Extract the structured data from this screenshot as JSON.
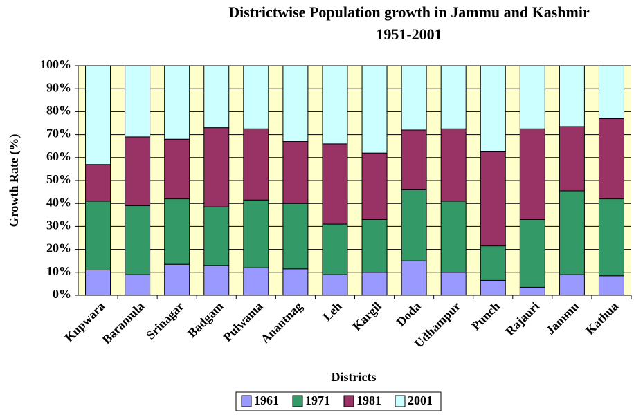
{
  "chart_data": {
    "type": "stacked_bar",
    "title": "Districtwise Population growth in Jammu and Kashmir",
    "subtitle": "1951-2001",
    "x_label": "Districts",
    "y_label": "Growth Rate (%)",
    "categories": [
      "Kupwara",
      "Baramula",
      "Srinagar",
      "Badgam",
      "Pulwama",
      "Anantnag",
      "Leh",
      "Kargil",
      "Doda",
      "Udhampur",
      "Punch",
      "Rajauri",
      "Jammu",
      "Kathua"
    ],
    "series": [
      {
        "name": "1961",
        "color": "#9999ff",
        "values": [
          11,
          9,
          13.5,
          13,
          12,
          11.5,
          9,
          10,
          15,
          10,
          6.5,
          3.5,
          9,
          8.5
        ]
      },
      {
        "name": "1971",
        "color": "#339966",
        "values": [
          30,
          30,
          28.5,
          25.5,
          29.5,
          28.5,
          22,
          23,
          31,
          31,
          15,
          29.5,
          36.5,
          33.5
        ]
      },
      {
        "name": "1981",
        "color": "#993366",
        "values": [
          16,
          30,
          26,
          34.5,
          31,
          27,
          35,
          29,
          26,
          31.5,
          41,
          39.5,
          28,
          35
        ]
      },
      {
        "name": "2001",
        "color": "#ccffff",
        "values": [
          43,
          31,
          32,
          27,
          27.5,
          33,
          34,
          38,
          28,
          27.5,
          37.5,
          27.5,
          26.5,
          23
        ]
      }
    ],
    "ylim": [
      0,
      100
    ],
    "yticks": [
      {
        "value": 0,
        "label": "0%"
      },
      {
        "value": 10,
        "label": "10%"
      },
      {
        "value": 20,
        "label": "20%"
      },
      {
        "value": 30,
        "label": "30%"
      },
      {
        "value": 40,
        "label": "40%"
      },
      {
        "value": 50,
        "label": "50%"
      },
      {
        "value": 60,
        "label": "60%"
      },
      {
        "value": 70,
        "label": "70%"
      },
      {
        "value": 80,
        "label": "80%"
      },
      {
        "value": 90,
        "label": "90%"
      },
      {
        "value": 100,
        "label": "100%"
      }
    ],
    "grid": true,
    "legend": "bottom"
  }
}
